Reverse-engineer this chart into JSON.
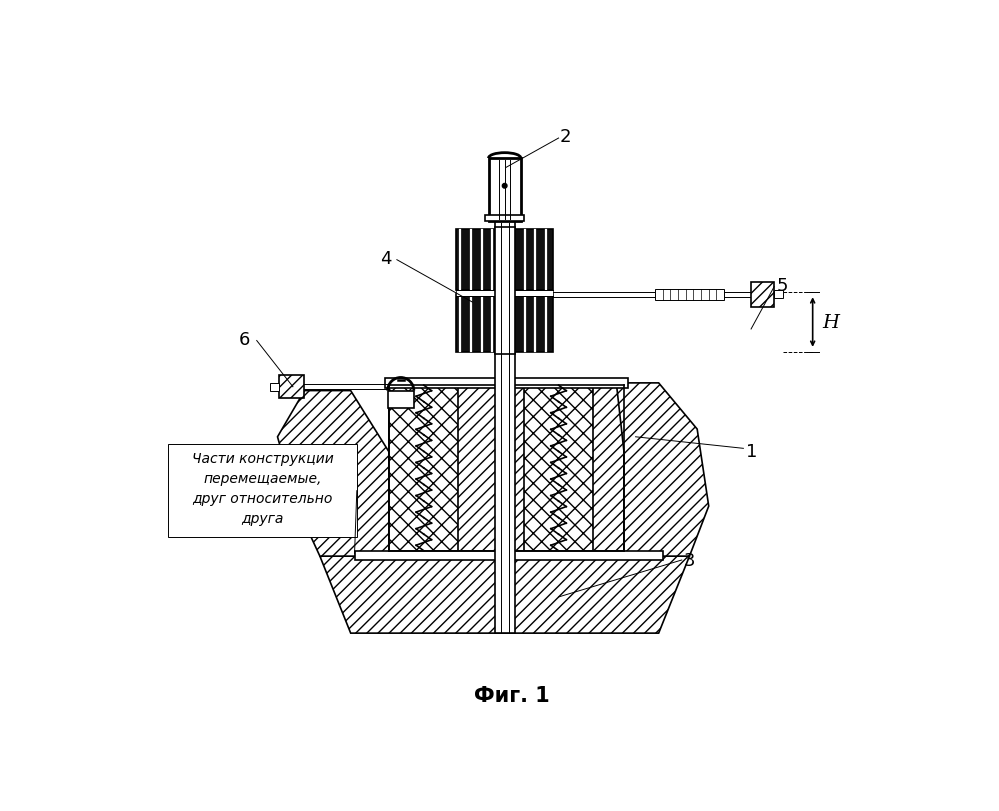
{
  "fig_label": "Фиг. 1",
  "annotation_lines": [
    "Части конструкции",
    "перемещаемые,",
    "друг относительно",
    "друга"
  ],
  "bg_color": "#ffffff",
  "line_color": "#000000",
  "lw_thin": 0.7,
  "lw_med": 1.2,
  "lw_thick": 2.0,
  "label_fontsize": 13,
  "annotation_fontsize": 10,
  "fig_label_fontsize": 15
}
